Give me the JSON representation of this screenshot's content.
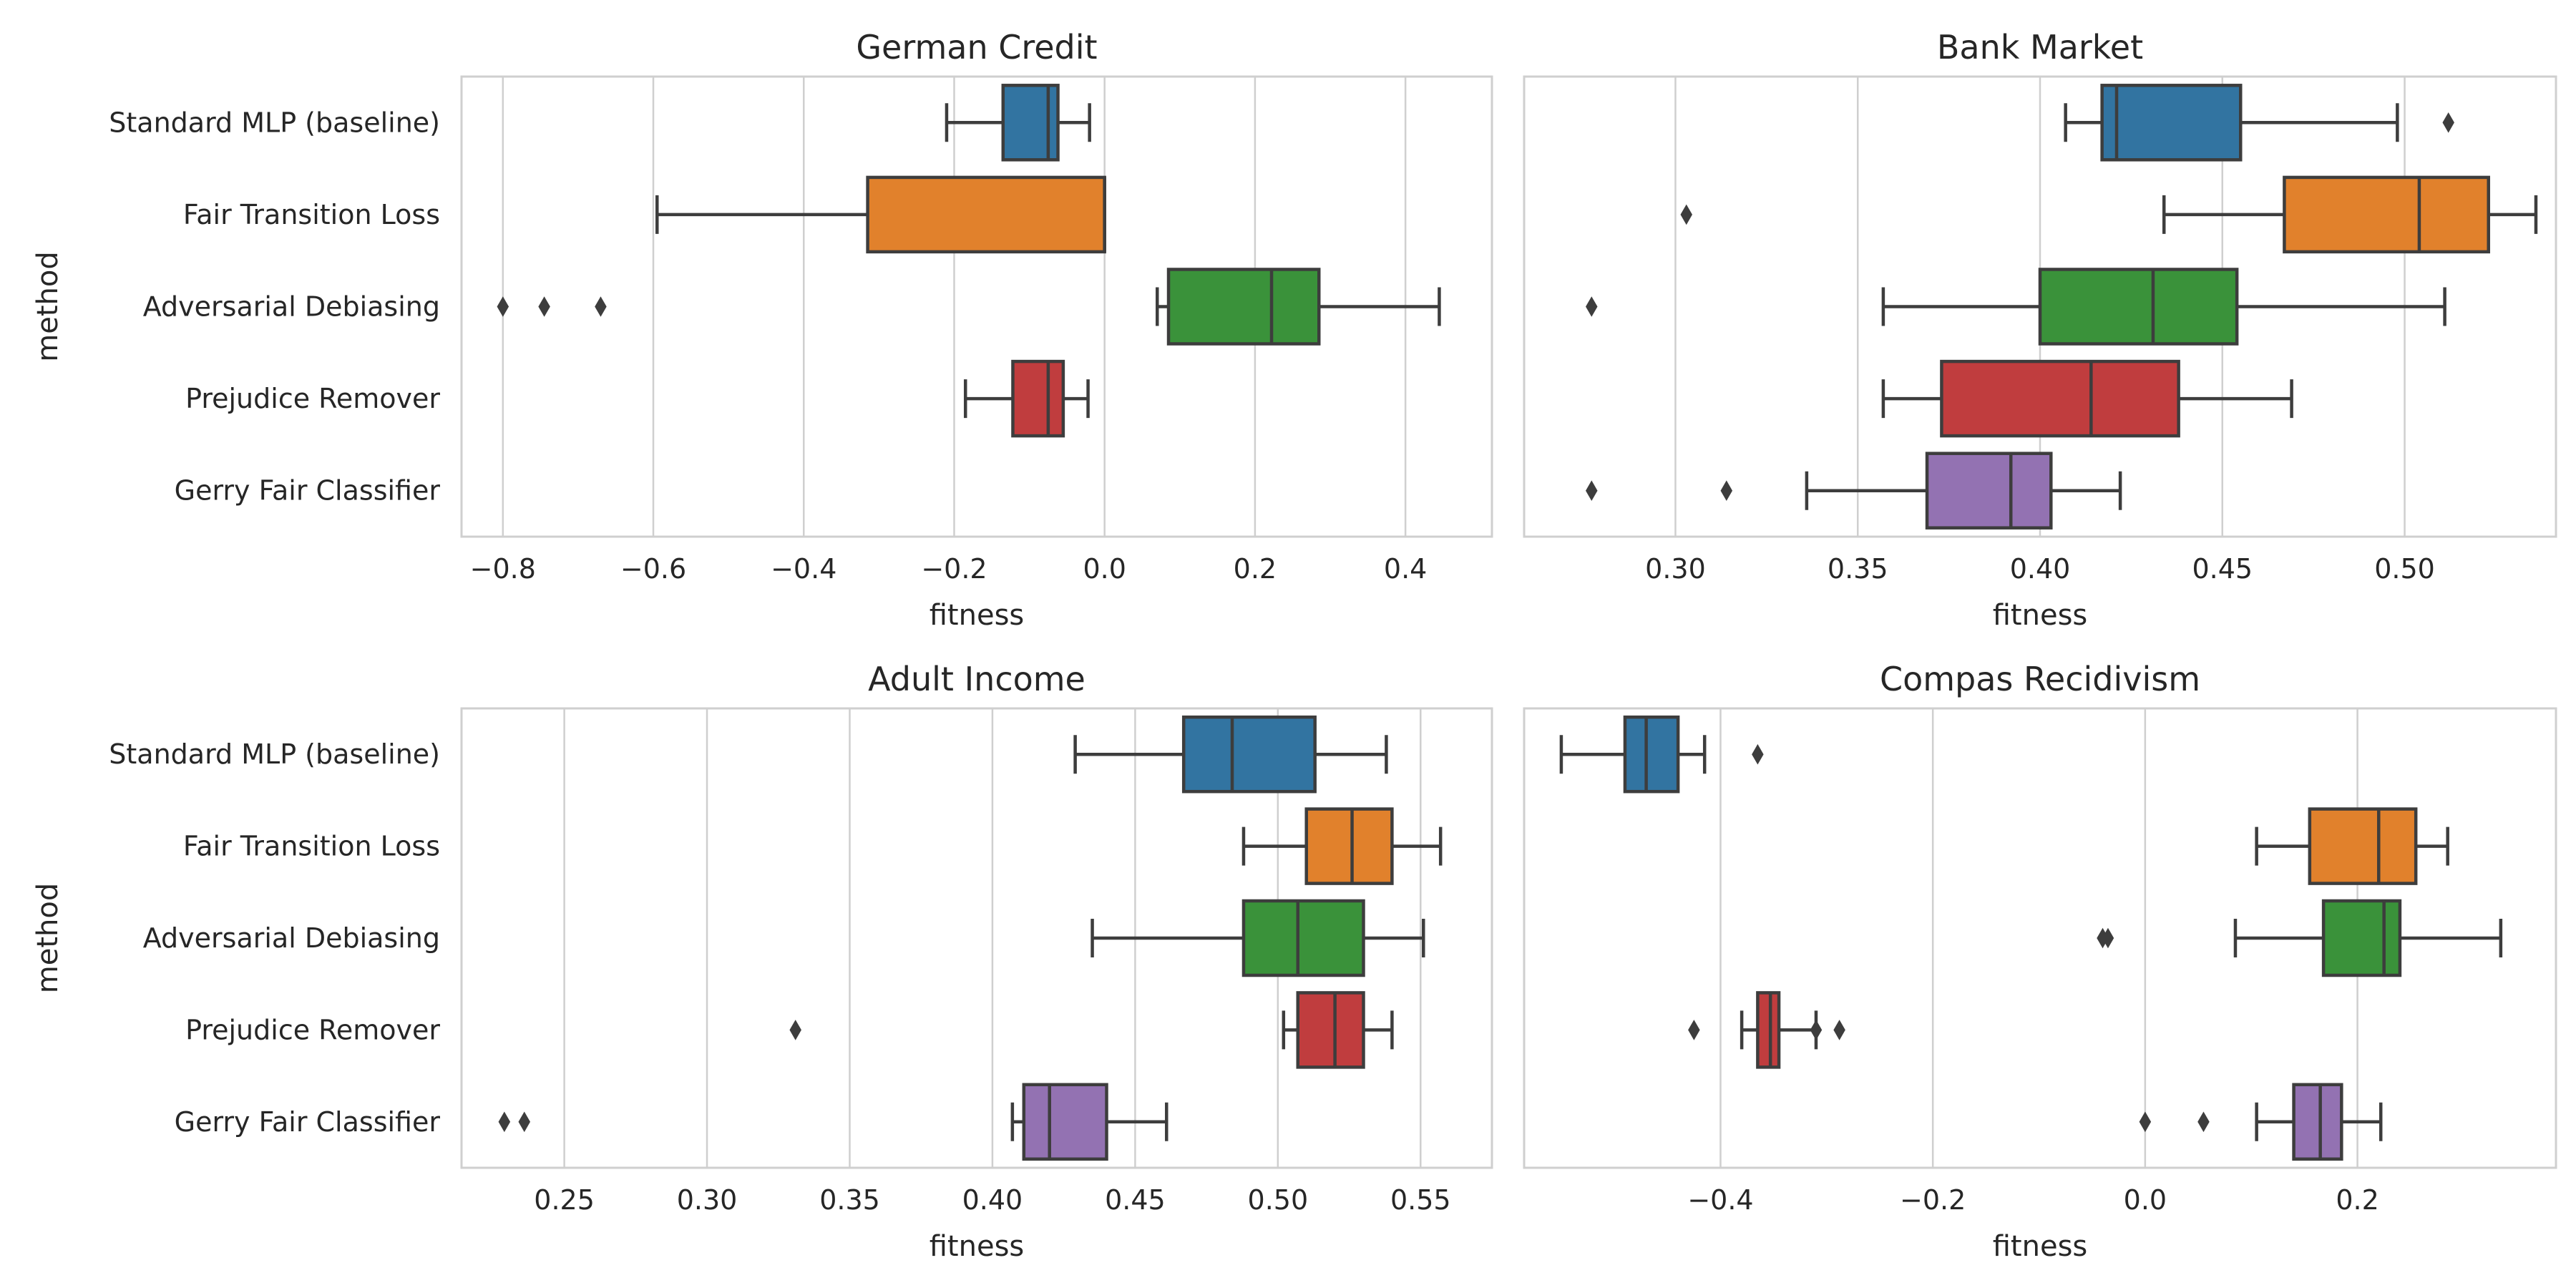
{
  "colors": {
    "series": [
      "#3274a1",
      "#e1812c",
      "#3a923a",
      "#c03d3e",
      "#9372b2"
    ],
    "box_edge": "#3d3d3d",
    "grid": "#cfcfcf",
    "frame": "#cfcfcf"
  },
  "chart_data": [
    {
      "type": "box",
      "title": "German Credit",
      "xlabel": "fitness",
      "ylabel": "method",
      "categories": [
        "Standard MLP (baseline)",
        "Fair Transition Loss",
        "Adversarial Debiasing",
        "Prejudice Remover",
        "Gerry Fair Classifier"
      ],
      "xlim": [
        -0.855,
        0.515
      ],
      "xticks": [
        -0.8,
        -0.6,
        -0.4,
        -0.2,
        0.0,
        0.2,
        0.4
      ],
      "xtick_labels": [
        "−0.8",
        "−0.6",
        "−0.4",
        "−0.2",
        "0.0",
        "0.2",
        "0.4"
      ],
      "grid": true,
      "boxes": [
        {
          "whislo": -0.21,
          "q1": -0.135,
          "med": -0.075,
          "q3": -0.062,
          "whishi": -0.02,
          "fliers": []
        },
        {
          "whislo": -0.595,
          "q1": -0.315,
          "med": 0.0,
          "q3": 0.0,
          "whishi": 0.0,
          "fliers": []
        },
        {
          "whislo": 0.07,
          "q1": 0.085,
          "med": 0.222,
          "q3": 0.285,
          "whishi": 0.445,
          "fliers": [
            -0.8,
            -0.745,
            -0.67
          ]
        },
        {
          "whislo": -0.185,
          "q1": -0.122,
          "med": -0.075,
          "q3": -0.055,
          "whishi": -0.022,
          "fliers": []
        },
        {
          "whislo": null,
          "q1": null,
          "med": null,
          "q3": null,
          "whishi": null,
          "fliers": []
        }
      ]
    },
    {
      "type": "box",
      "title": "Bank Market",
      "xlabel": "fitness",
      "ylabel": "",
      "categories": [
        "Standard MLP (baseline)",
        "Fair Transition Loss",
        "Adversarial Debiasing",
        "Prejudice Remover",
        "Gerry Fair Classifier"
      ],
      "xlim": [
        0.2585,
        0.5415
      ],
      "xticks": [
        0.3,
        0.35,
        0.4,
        0.45,
        0.5
      ],
      "xtick_labels": [
        "0.30",
        "0.35",
        "0.40",
        "0.45",
        "0.50"
      ],
      "grid": true,
      "boxes": [
        {
          "whislo": 0.407,
          "q1": 0.417,
          "med": 0.421,
          "q3": 0.455,
          "whishi": 0.498,
          "fliers": [
            0.512
          ]
        },
        {
          "whislo": 0.434,
          "q1": 0.467,
          "med": 0.504,
          "q3": 0.523,
          "whishi": 0.536,
          "fliers": [
            0.303
          ]
        },
        {
          "whislo": 0.357,
          "q1": 0.4,
          "med": 0.431,
          "q3": 0.454,
          "whishi": 0.511,
          "fliers": [
            0.277
          ]
        },
        {
          "whislo": 0.357,
          "q1": 0.373,
          "med": 0.414,
          "q3": 0.438,
          "whishi": 0.469,
          "fliers": []
        },
        {
          "whislo": 0.336,
          "q1": 0.369,
          "med": 0.392,
          "q3": 0.403,
          "whishi": 0.422,
          "fliers": [
            0.277,
            0.314
          ]
        }
      ]
    },
    {
      "type": "box",
      "title": "Adult Income",
      "xlabel": "fitness",
      "ylabel": "method",
      "categories": [
        "Standard MLP (baseline)",
        "Fair Transition Loss",
        "Adversarial Debiasing",
        "Prejudice Remover",
        "Gerry Fair Classifier"
      ],
      "xlim": [
        0.214,
        0.575
      ],
      "xticks": [
        0.25,
        0.3,
        0.35,
        0.4,
        0.45,
        0.5,
        0.55
      ],
      "xtick_labels": [
        "0.25",
        "0.30",
        "0.35",
        "0.40",
        "0.45",
        "0.50",
        "0.55"
      ],
      "grid": true,
      "boxes": [
        {
          "whislo": 0.429,
          "q1": 0.467,
          "med": 0.484,
          "q3": 0.513,
          "whishi": 0.538,
          "fliers": []
        },
        {
          "whislo": 0.488,
          "q1": 0.51,
          "med": 0.526,
          "q3": 0.54,
          "whishi": 0.557,
          "fliers": []
        },
        {
          "whislo": 0.435,
          "q1": 0.488,
          "med": 0.507,
          "q3": 0.53,
          "whishi": 0.551,
          "fliers": []
        },
        {
          "whislo": 0.502,
          "q1": 0.507,
          "med": 0.52,
          "q3": 0.53,
          "whishi": 0.54,
          "fliers": [
            0.331
          ]
        },
        {
          "whislo": 0.407,
          "q1": 0.411,
          "med": 0.42,
          "q3": 0.44,
          "whishi": 0.461,
          "fliers": [
            0.229,
            0.236
          ]
        }
      ]
    },
    {
      "type": "box",
      "title": "Compas Recidivism",
      "xlabel": "fitness",
      "ylabel": "",
      "categories": [
        "Standard MLP (baseline)",
        "Fair Transition Loss",
        "Adversarial Debiasing",
        "Prejudice Remover",
        "Gerry Fair Classifier"
      ],
      "xlim": [
        -0.585,
        0.387
      ],
      "xticks": [
        -0.4,
        -0.2,
        0.0,
        0.2
      ],
      "xtick_labels": [
        "−0.4",
        "−0.2",
        "0.0",
        "0.2"
      ],
      "grid": true,
      "boxes": [
        {
          "whislo": -0.55,
          "q1": -0.49,
          "med": -0.47,
          "q3": -0.44,
          "whishi": -0.415,
          "fliers": [
            -0.365
          ]
        },
        {
          "whislo": 0.105,
          "q1": 0.155,
          "med": 0.22,
          "q3": 0.255,
          "whishi": 0.285,
          "fliers": []
        },
        {
          "whislo": 0.085,
          "q1": 0.168,
          "med": 0.225,
          "q3": 0.24,
          "whishi": 0.335,
          "fliers": [
            -0.04,
            -0.035
          ]
        },
        {
          "whislo": -0.38,
          "q1": -0.365,
          "med": -0.353,
          "q3": -0.345,
          "whishi": -0.31,
          "fliers": [
            -0.425,
            -0.31,
            -0.288
          ]
        },
        {
          "whislo": 0.105,
          "q1": 0.14,
          "med": 0.165,
          "q3": 0.185,
          "whishi": 0.222,
          "fliers": [
            0.0,
            0.055
          ]
        }
      ]
    }
  ]
}
